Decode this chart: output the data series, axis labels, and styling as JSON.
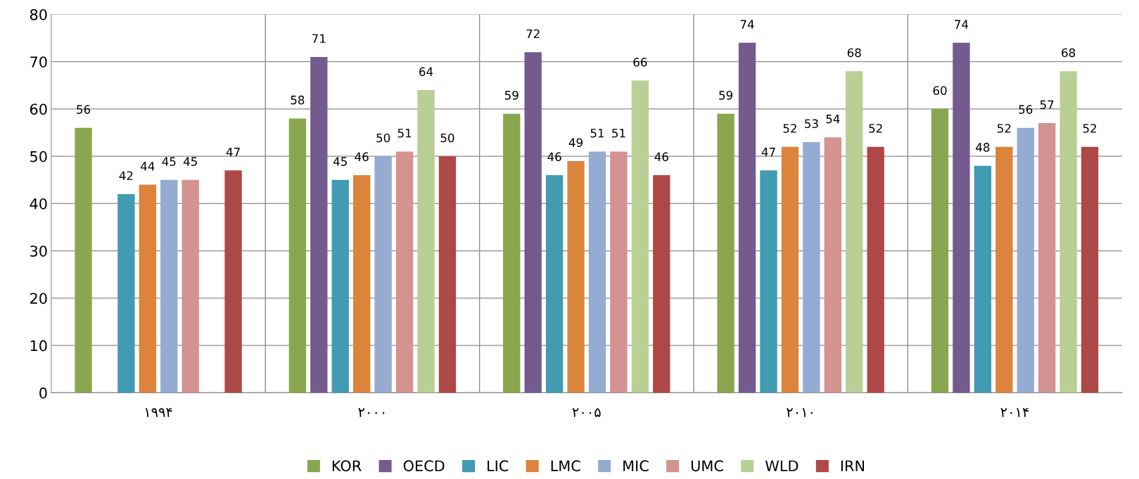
{
  "chart_data": {
    "type": "bar",
    "categories": [
      "۱۹۹۴",
      "۲۰۰۰",
      "۲۰۰۵",
      "۲۰۱۰",
      "۲۰۱۴"
    ],
    "series": [
      {
        "name": "KOR",
        "color": "#8aa64f",
        "values": [
          56,
          58,
          59,
          59,
          60
        ]
      },
      {
        "name": "OECD",
        "color": "#735a8f",
        "values": [
          null,
          71,
          72,
          74,
          74
        ]
      },
      {
        "name": "LIC",
        "color": "#409bb3",
        "values": [
          42,
          45,
          46,
          47,
          48
        ]
      },
      {
        "name": "LMC",
        "color": "#dc843b",
        "values": [
          44,
          46,
          49,
          52,
          52
        ]
      },
      {
        "name": "MIC",
        "color": "#95abd2",
        "values": [
          45,
          50,
          51,
          53,
          56
        ]
      },
      {
        "name": "UMC",
        "color": "#d49290",
        "values": [
          45,
          51,
          51,
          54,
          57
        ]
      },
      {
        "name": "WLD",
        "color": "#b8cf95",
        "values": [
          null,
          64,
          66,
          68,
          68
        ]
      },
      {
        "name": "IRN",
        "color": "#ad4846",
        "values": [
          47,
          50,
          46,
          52,
          52
        ]
      }
    ],
    "ylim": [
      0,
      80
    ],
    "yticks": [
      0,
      10,
      20,
      30,
      40,
      50,
      60,
      70,
      80
    ],
    "grid": true,
    "legend": "bottom",
    "data_labels": true
  }
}
